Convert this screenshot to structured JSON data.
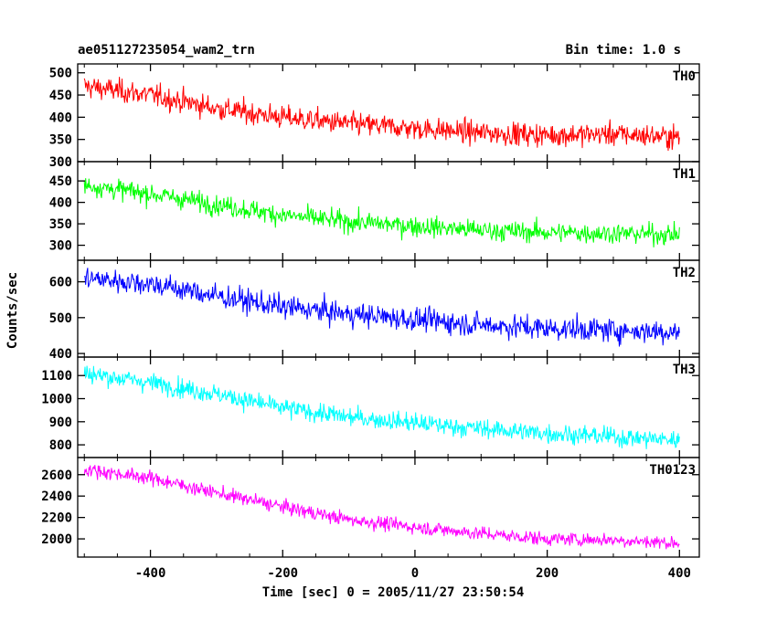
{
  "chart_data": {
    "type": "line",
    "title": "ae051127235054_wam2_trn",
    "subtitle": "Bin time: 1.0 s",
    "xlabel": "Time [sec] 0 = 2005/11/27 23:50:54",
    "ylabel": "Counts/sec",
    "xlim": [
      -510,
      430
    ],
    "xticks": [
      "-400",
      "-200",
      "0",
      "200",
      "400"
    ],
    "xtick_values": [
      -400,
      -200,
      0,
      200,
      400
    ],
    "panels": [
      {
        "name": "TH0",
        "color": "#ff0000",
        "ylim": [
          300,
          520
        ],
        "yticks": [
          300,
          350,
          400,
          450,
          500
        ],
        "ytick_labels": [
          "300",
          "350",
          "400",
          "450",
          "500"
        ],
        "trend": {
          "x": [
            -500,
            -400,
            -300,
            -200,
            -100,
            0,
            100,
            200,
            300,
            400
          ],
          "y": [
            470,
            450,
            420,
            400,
            385,
            375,
            365,
            360,
            362,
            355
          ]
        },
        "noise": 22
      },
      {
        "name": "TH1",
        "color": "#00ff00",
        "ylim": [
          265,
          495
        ],
        "yticks": [
          300,
          350,
          400,
          450
        ],
        "ytick_labels": [
          "300",
          "350",
          "400",
          "450"
        ],
        "trend": {
          "x": [
            -500,
            -400,
            -300,
            -200,
            -100,
            0,
            100,
            200,
            300,
            400
          ],
          "y": [
            440,
            420,
            395,
            370,
            355,
            345,
            335,
            330,
            328,
            325
          ]
        },
        "noise": 20
      },
      {
        "name": "TH2",
        "color": "#0000ff",
        "ylim": [
          390,
          660
        ],
        "yticks": [
          400,
          500,
          600
        ],
        "ytick_labels": [
          "400",
          "500",
          "600"
        ],
        "trend": {
          "x": [
            -500,
            -400,
            -300,
            -200,
            -100,
            0,
            100,
            200,
            300,
            400
          ],
          "y": [
            610,
            595,
            560,
            530,
            510,
            495,
            480,
            470,
            465,
            460
          ]
        },
        "noise": 28
      },
      {
        "name": "TH3",
        "color": "#00ffff",
        "ylim": [
          745,
          1180
        ],
        "yticks": [
          800,
          900,
          1000,
          1100
        ],
        "ytick_labels": [
          "800",
          "900",
          "1000",
          "1100"
        ],
        "trend": {
          "x": [
            -500,
            -400,
            -300,
            -200,
            -100,
            0,
            100,
            200,
            300,
            400
          ],
          "y": [
            1110,
            1070,
            1020,
            960,
            920,
            895,
            870,
            850,
            835,
            820
          ]
        },
        "noise": 35
      },
      {
        "name": "TH0123",
        "color": "#ff00ff",
        "ylim": [
          1830,
          2760
        ],
        "yticks": [
          2000,
          2200,
          2400,
          2600
        ],
        "ytick_labels": [
          "2000",
          "2200",
          "2400",
          "2600"
        ],
        "trend": {
          "x": [
            -500,
            -400,
            -300,
            -200,
            -100,
            0,
            100,
            200,
            300,
            400
          ],
          "y": [
            2650,
            2570,
            2430,
            2300,
            2180,
            2110,
            2050,
            2000,
            1990,
            1960
          ]
        },
        "noise": 55
      }
    ]
  }
}
